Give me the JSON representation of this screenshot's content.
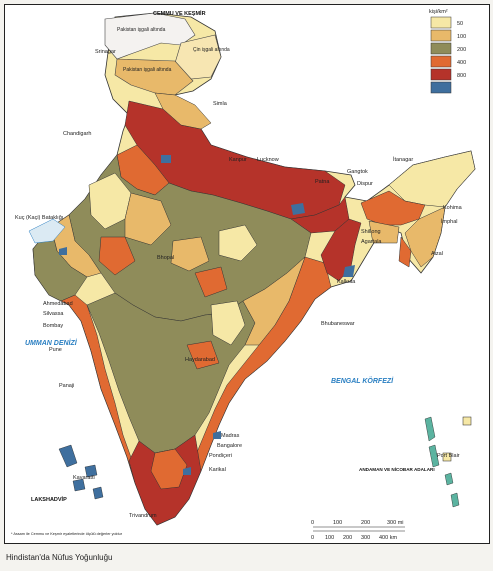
{
  "caption": "Hindistan'da Nüfus Yoğunluğu",
  "legend": {
    "unit": "kişi/km²",
    "items": [
      {
        "label": "50",
        "color": "#f6e8a6"
      },
      {
        "label": "100",
        "color": "#e8b96a"
      },
      {
        "label": "200",
        "color": "#8f8c5a"
      },
      {
        "label": "400",
        "color": "#e06a32"
      },
      {
        "label": "800",
        "color": "#b5332a"
      },
      {
        "label": "",
        "color": "#3f6f9e"
      }
    ]
  },
  "kashmir": {
    "title": "CEMMU VE KEŞMİR",
    "pakistan": "Pakistan işgali altında",
    "china": "Çin işgali altında",
    "pakistan2": "Pakistan işgali altında"
  },
  "seas": {
    "arabian": "UMMAN DENİZİ",
    "bengal": "BENGAL KÖRFEZİ"
  },
  "cities": {
    "srinagar": "Srinagar",
    "simla": "Simla",
    "chandigarh": "Chandigarh",
    "kanpur": "Kanpur",
    "lucknow": "Lucknow",
    "patna": "Patna",
    "gangtok": "Gangtok",
    "itanagar": "İtanagar",
    "dispur": "Dispur",
    "kohima": "Kohima",
    "imphal": "İmphal",
    "shillong": "Shillong",
    "agartala": "Agartala",
    "aizal": "Aizal",
    "kutch": "Kuç (Kaçi) Bataklığı",
    "ahmedabad": "Ahmedabad",
    "silvassa": "Silvassa",
    "bombay": "Bombay",
    "pune": "Pune",
    "panaji": "Panaji",
    "kalkuta": "Kalkuta",
    "bhubaneswar": "Bhubaneswar",
    "hyderabad": "Haydarabad",
    "bhopal": "Bhopal",
    "madras": "Madras",
    "bangalore": "Bangalore",
    "pondicheri": "Pondiçeri",
    "karikal": "Karikal",
    "kavaratti": "Kavaratti",
    "trivandrum": "Trivandrum",
    "portblair": "Port Blair",
    "lakshadvip": "LAKSHADVİP",
    "andaman": "ANDAMAN VE NİCOBAR ADALARI"
  },
  "footnote": "* Assam ile Cemmu ve Keşmir eyaletlerinde ölçülü değerler yoktur",
  "scale": {
    "miles_ticks": [
      "0",
      "100",
      "200",
      "300 mi"
    ],
    "km_ticks": [
      "0",
      "100",
      "200",
      "300",
      "400 km"
    ]
  }
}
